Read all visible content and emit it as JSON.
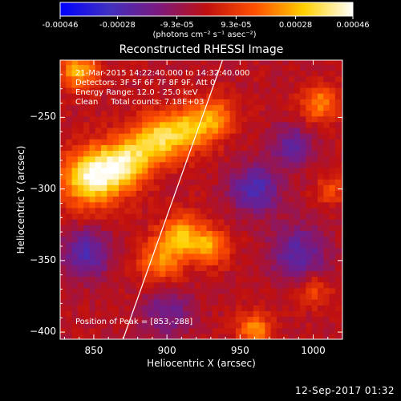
{
  "chart_data": {
    "type": "heatmap",
    "title": "Reconstructed RHESSI Image",
    "xlabel": "Heliocentric X (arcsec)",
    "ylabel": "Heliocentric Y (arcsec)",
    "xlim": [
      827,
      1020
    ],
    "ylim": [
      -405,
      -210
    ],
    "xticks": [
      850,
      900,
      950,
      1000
    ],
    "xtick_labels": [
      "850",
      "900",
      "950",
      "1000"
    ],
    "yticks": [
      -250,
      -300,
      -350,
      -400
    ],
    "ytick_labels": [
      "-250",
      "-300",
      "-350",
      "-400"
    ],
    "colorbar": {
      "range": [
        -0.00046,
        0.00046
      ],
      "tick_values": [
        -0.00046,
        -0.00028,
        -9.3e-05,
        9.3e-05,
        0.00028,
        0.00046
      ],
      "tick_labels": [
        "-0.00046",
        "-0.00028",
        "-9.3e-05",
        "9.3e-05",
        "0.00028",
        "0.00046"
      ],
      "unit_label": "(photons cm⁻² s⁻¹ asec⁻²)",
      "colors": [
        "#0000ff",
        "#4030c0",
        "#7a1a80",
        "#c01010",
        "#ff5000",
        "#ffd000",
        "#ffffff"
      ]
    },
    "annotations": [
      "21-Mar-2015 14:22:40.000 to 14:32:40.000",
      "Detectors: 3F 5F 6F 7F 8F 9F, Att 0",
      "Energy Range: 12.0 - 25.0 keV",
      "Clean     Total counts: 7.18E+03"
    ],
    "peak_label": "Position of Peak = [853,-288]",
    "limb_line": {
      "x1": 870,
      "y1": -405,
      "x2": 938,
      "y2": -210
    },
    "sources": [
      {
        "x": 848,
        "y": -292,
        "sigma": 14,
        "amp": 1.0
      },
      {
        "x": 870,
        "y": -282,
        "sigma": 12,
        "amp": 0.85
      },
      {
        "x": 892,
        "y": -266,
        "sigma": 12,
        "amp": 0.8
      },
      {
        "x": 914,
        "y": -258,
        "sigma": 11,
        "amp": 0.65
      },
      {
        "x": 933,
        "y": -250,
        "sigma": 10,
        "amp": 0.55
      },
      {
        "x": 840,
        "y": -218,
        "sigma": 9,
        "amp": 0.7
      },
      {
        "x": 910,
        "y": -332,
        "sigma": 10,
        "amp": 0.7
      },
      {
        "x": 930,
        "y": -340,
        "sigma": 9,
        "amp": 0.6
      },
      {
        "x": 895,
        "y": -350,
        "sigma": 11,
        "amp": 0.55
      },
      {
        "x": 960,
        "y": -398,
        "sigma": 8,
        "amp": 0.6
      },
      {
        "x": 1005,
        "y": -240,
        "sigma": 9,
        "amp": 0.55
      },
      {
        "x": 1012,
        "y": -300,
        "sigma": 7,
        "amp": 0.35
      },
      {
        "x": 1000,
        "y": -370,
        "sigma": 8,
        "amp": 0.35
      },
      {
        "x": 960,
        "y": -300,
        "sigma": 12,
        "amp": -0.6
      },
      {
        "x": 900,
        "y": -385,
        "sigma": 12,
        "amp": -0.4
      },
      {
        "x": 845,
        "y": -345,
        "sigma": 12,
        "amp": -0.55
      },
      {
        "x": 985,
        "y": -270,
        "sigma": 10,
        "amp": -0.45
      },
      {
        "x": 990,
        "y": -345,
        "sigma": 14,
        "amp": -0.5
      }
    ]
  },
  "timestamp": "12-Sep-2017 01:32"
}
